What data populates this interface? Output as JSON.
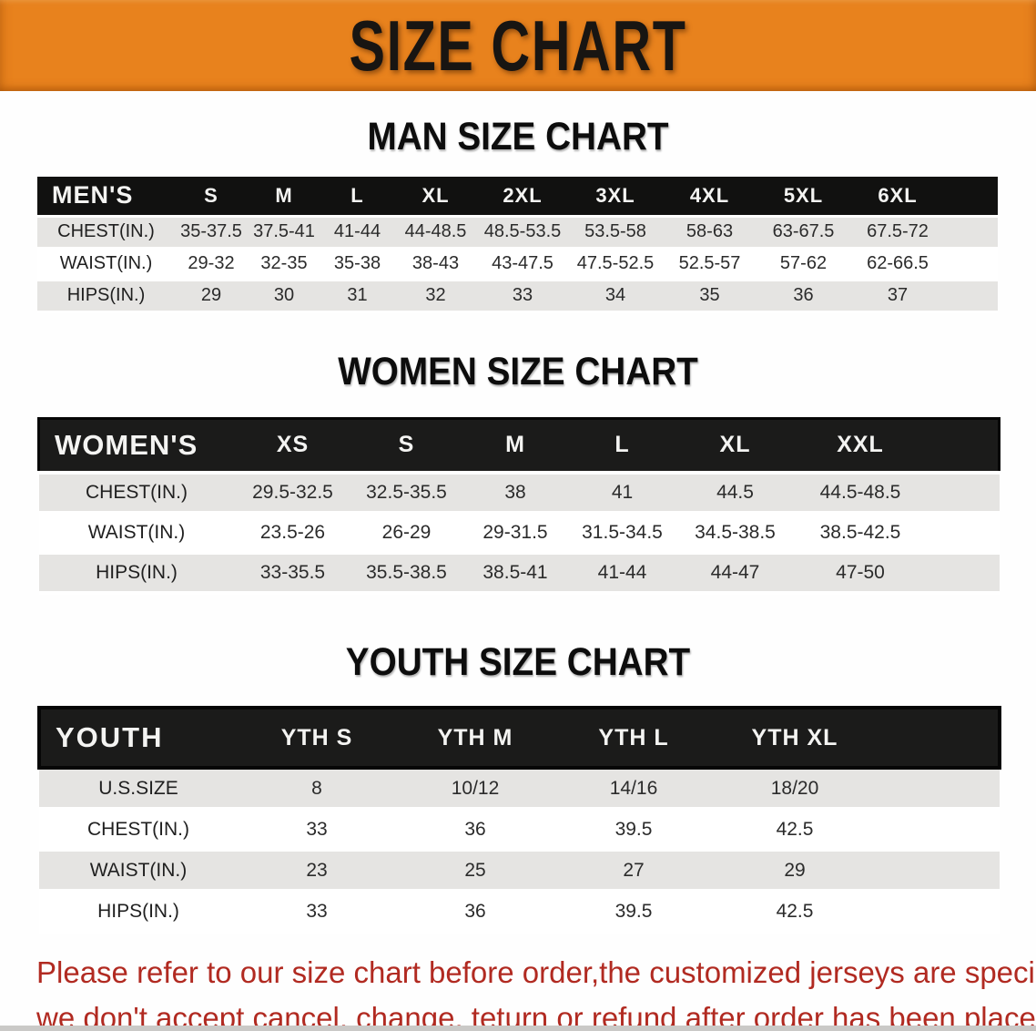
{
  "banner": {
    "title": "SIZE CHART",
    "bg_color": "#e8821d",
    "text_color": "#181512"
  },
  "sections": [
    {
      "heading": "MAN SIZE CHART",
      "table": {
        "header_label": "MEN'S",
        "sizes": [
          "S",
          "M",
          "L",
          "XL",
          "2XL",
          "3XL",
          "4XL",
          "5XL",
          "6XL"
        ],
        "rows": [
          {
            "label": "CHEST(IN.)",
            "values": [
              "35-37.5",
              "37.5-41",
              "41-44",
              "44-48.5",
              "48.5-53.5",
              "53.5-58",
              "58-63",
              "63-67.5",
              "67.5-72"
            ]
          },
          {
            "label": "WAIST(IN.)",
            "values": [
              "29-32",
              "32-35",
              "35-38",
              "38-43",
              "43-47.5",
              "47.5-52.5",
              "52.5-57",
              "57-62",
              "62-66.5"
            ]
          },
          {
            "label": "HIPS(IN.)",
            "values": [
              "29",
              "30",
              "31",
              "32",
              "33",
              "34",
              "35",
              "36",
              "37"
            ]
          }
        ]
      }
    },
    {
      "heading": "WOMEN SIZE CHART",
      "table": {
        "header_label": "WOMEN'S",
        "sizes": [
          "XS",
          "S",
          "M",
          "L",
          "XL",
          "XXL"
        ],
        "rows": [
          {
            "label": "CHEST(IN.)",
            "values": [
              "29.5-32.5",
              "32.5-35.5",
              "38",
              "41",
              "44.5",
              "44.5-48.5"
            ]
          },
          {
            "label": "WAIST(IN.)",
            "values": [
              "23.5-26",
              "26-29",
              "29-31.5",
              "31.5-34.5",
              "34.5-38.5",
              "38.5-42.5"
            ]
          },
          {
            "label": "HIPS(IN.)",
            "values": [
              "33-35.5",
              "35.5-38.5",
              "38.5-41",
              "41-44",
              "44-47",
              "47-50"
            ]
          }
        ]
      }
    },
    {
      "heading": "YOUTH SIZE CHART",
      "table": {
        "header_label": "YOUTH",
        "sizes": [
          "YTH S",
          "YTH M",
          "YTH L",
          "YTH XL"
        ],
        "rows": [
          {
            "label": "U.S.SIZE",
            "values": [
              "8",
              "10/12",
              "14/16",
              "18/20"
            ]
          },
          {
            "label": "CHEST(IN.)",
            "values": [
              "33",
              "36",
              "39.5",
              "42.5"
            ]
          },
          {
            "label": "WAIST(IN.)",
            "values": [
              "23",
              "25",
              "27",
              "29"
            ]
          },
          {
            "label": "HIPS(IN.)",
            "values": [
              "33",
              "36",
              "39.5",
              "42.5"
            ]
          }
        ]
      }
    }
  ],
  "footer": {
    "line1": "Please refer to our size chart before order,the customized jerseys are special products,",
    "line2": "we don't accept cancel, change, teturn or refund after order has been placed!",
    "text_color": "#b12a21"
  },
  "colors": {
    "table_band": "#111110",
    "row_stripe": "#e5e4e2"
  }
}
